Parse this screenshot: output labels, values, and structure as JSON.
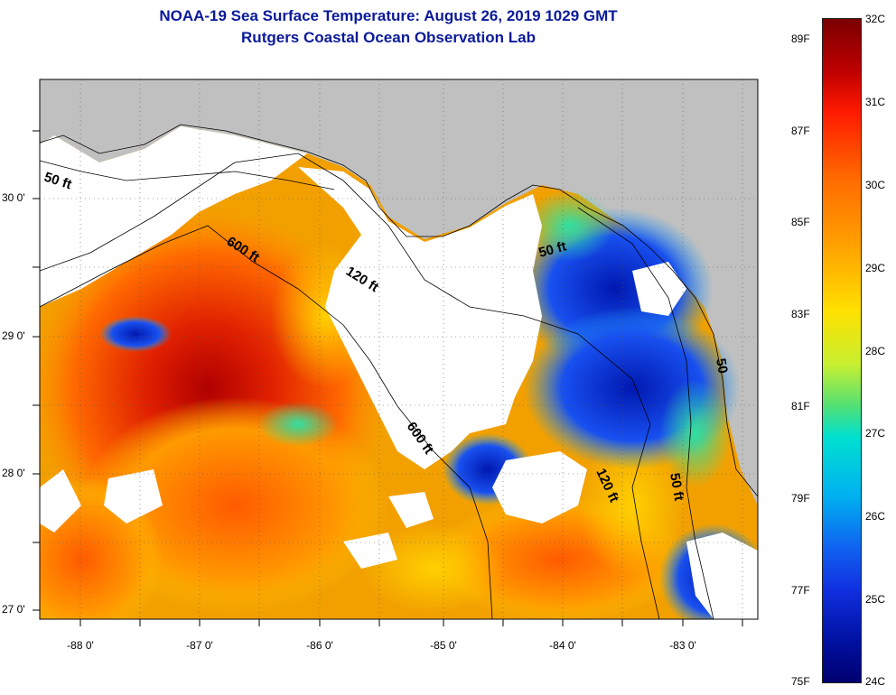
{
  "header": {
    "title": "NOAA-19 Sea Surface Temperature:  August 26, 2019 1029 GMT",
    "subtitle": "Rutgers Coastal Ocean Observation Lab"
  },
  "map": {
    "lat_labels": [
      "30 0'",
      "29 0'",
      "28 0'",
      "27 0'"
    ],
    "lon_labels": [
      "-88 0'",
      "-87 0'",
      "-86 0'",
      "-85 0'",
      "-84 0'",
      "-83 0'"
    ],
    "contour_labels": [
      "50 ft",
      "600 ft",
      "120 ft",
      "50 ft",
      "600 ft",
      "120 ft",
      "50 ft",
      "50"
    ],
    "land_color": "#c0c0c0",
    "cloud_color": "#ffffff"
  },
  "colorbar": {
    "fahrenheit": [
      "89F",
      "87F",
      "85F",
      "83F",
      "81F",
      "79F",
      "77F",
      "75F"
    ],
    "celsius": [
      "32C",
      "31C",
      "30C",
      "29C",
      "28C",
      "27C",
      "26C",
      "25C",
      "24C"
    ]
  }
}
